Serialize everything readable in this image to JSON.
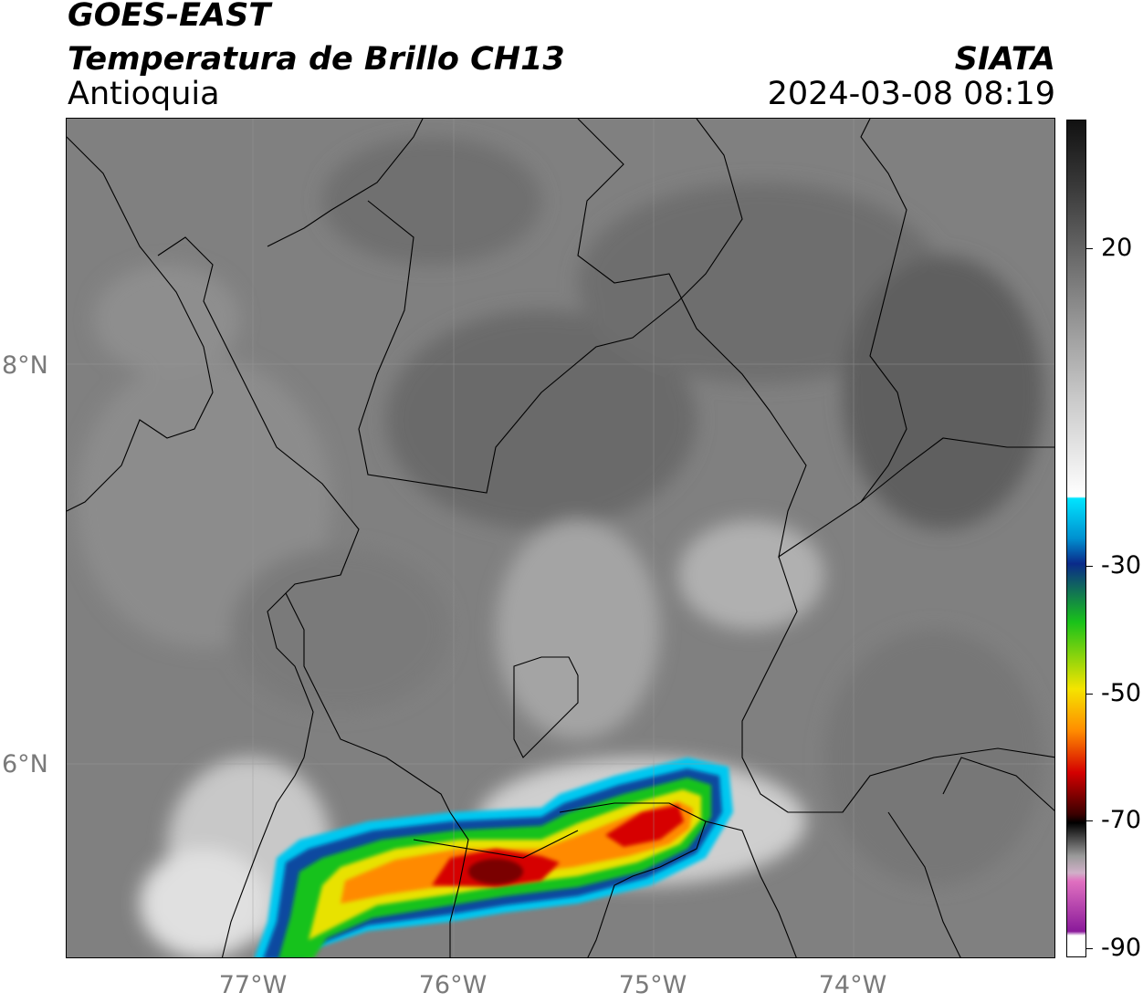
{
  "header": {
    "satellite": "GOES-EAST",
    "product": "Temperatura de Brillo CH13",
    "region": "Antioquia",
    "organization": "SIATA",
    "datetime": "2024-03-08 08:19"
  },
  "axes": {
    "lat_labels": [
      "8°N",
      "6°N"
    ],
    "lon_labels": [
      "77°W",
      "76°W",
      "75°W",
      "74°W"
    ]
  },
  "colorbar": {
    "tick_labels": [
      "20",
      "-30",
      "-50",
      "-70",
      "-90"
    ],
    "units_range": [
      -90,
      30
    ],
    "colors": {
      "warm_gray_top": "#111111",
      "mid_gray": "#8a8a8a",
      "white": "#ffffff",
      "cyan": "#00e5ff",
      "blue": "#0a2a8a",
      "green": "#19c21a",
      "yellow": "#f5e400",
      "orange": "#ff8c00",
      "red": "#d40000",
      "dark_red": "#3a0000",
      "black": "#000000",
      "pink": "#e070c0",
      "purple": "#8a1a9a"
    }
  },
  "map_colors": {
    "background_gray": "#7f7f7f",
    "boundary": "#000000"
  }
}
